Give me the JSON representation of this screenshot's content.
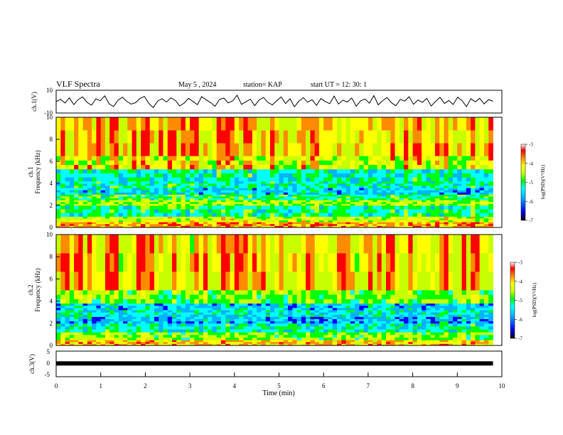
{
  "header": {
    "title": "VLF Spectra",
    "date": "May 5 , 2024",
    "station": "station= KAP",
    "start": "start UT = 12: 30: 1"
  },
  "chart_data": [
    {
      "type": "line",
      "id": "ch1-waveform",
      "ylabel": "ch.1(V)",
      "ylim": [
        -10,
        10
      ],
      "yticks": [
        "10",
        "-10"
      ],
      "xlim": [
        0,
        10
      ],
      "x_extent": [
        0,
        9.8
      ],
      "values": [
        0,
        2.1,
        -1.2,
        3.4,
        -2.6,
        1.8,
        4.2,
        -0.6,
        -3.1,
        2.4,
        0.8,
        5.1,
        -1.9,
        -4.3,
        1.2,
        3.9,
        0.3,
        -2.2,
        -0.9,
        2.8,
        4.6,
        -1.5,
        -5.2,
        0.5,
        2.6,
        -0.4,
        3.3,
        1.1,
        -3.8,
        -1.3,
        2.9,
        0.2,
        -2.7,
        4.4,
        1.6,
        -0.8,
        -4.1,
        1.9,
        3.1,
        -1.1,
        0.6,
        5.6,
        -2.4,
        -0.2,
        2.2,
        -3.5,
        1.4,
        3.7,
        -0.7,
        -2.9,
        0.9,
        4.1,
        -1.7,
        2.5,
        -4.6,
        0.4,
        3.5,
        -0.5,
        1.7,
        -3.3,
        2.7,
        0.1,
        -1.8,
        4.8,
        -2.1,
        1.3,
        -0.3,
        3.2,
        -4.0,
        0.7,
        2.3,
        -1.4,
        5.3,
        -2.8,
        0.9,
        3.6,
        -1.0,
        -3.6,
        2.0,
        0.5,
        4.3,
        -2.3,
        1.5,
        -0.6,
        2.9,
        -3.9,
        0.3,
        3.8,
        -1.6,
        1.0,
        -2.5,
        4.0,
        0.8,
        -4.4,
        2.6,
        -0.1,
        3.0,
        -2.0,
        1.8,
        0.4
      ]
    },
    {
      "type": "heatmap",
      "id": "ch1-spectrogram",
      "ylabel": "ch.1\nFrequency (kHz)",
      "ylim": [
        0,
        10
      ],
      "yticks": [
        "0",
        "2",
        "4",
        "6",
        "8",
        "10"
      ],
      "xlim": [
        0,
        10
      ],
      "x_extent": [
        0,
        9.8
      ],
      "colorbar": {
        "label": "log(PSD)(V²/Hz)",
        "range": [
          -7,
          -3
        ],
        "ticks": [
          "-3",
          "-4",
          "-5",
          "-6",
          "-7"
        ]
      },
      "bands_khz_log_psd": [
        {
          "from": 0.0,
          "to": 0.5,
          "level": -3.8
        },
        {
          "from": 0.5,
          "to": 1.0,
          "level": -4.5
        },
        {
          "from": 1.0,
          "to": 2.0,
          "level": -5.3
        },
        {
          "from": 2.0,
          "to": 2.5,
          "level": -4.7
        },
        {
          "from": 2.5,
          "to": 3.0,
          "level": -5.2
        },
        {
          "from": 3.0,
          "to": 3.6,
          "level": -5.7
        },
        {
          "from": 3.6,
          "to": 4.2,
          "level": -5.4
        },
        {
          "from": 4.2,
          "to": 5.3,
          "level": -5.5
        },
        {
          "from": 5.3,
          "to": 6.5,
          "level": -4.6
        },
        {
          "from": 6.5,
          "to": 10.0,
          "level": -4.2
        }
      ]
    },
    {
      "type": "heatmap",
      "id": "ch2-spectrogram",
      "ylabel": "ch.2\nFrequency (kHz)",
      "ylim": [
        0,
        10
      ],
      "yticks": [
        "0",
        "2",
        "4",
        "6",
        "8",
        "10"
      ],
      "xlim": [
        0,
        10
      ],
      "x_extent": [
        0,
        9.8
      ],
      "colorbar": {
        "label": "log(PSD)(V²/Hz)",
        "range": [
          -7,
          -3
        ],
        "ticks": [
          "-3",
          "-4",
          "-5",
          "-6",
          "-7"
        ]
      },
      "bands_khz_log_psd": [
        {
          "from": 0.0,
          "to": 0.5,
          "level": -4.0
        },
        {
          "from": 0.5,
          "to": 1.2,
          "level": -4.8
        },
        {
          "from": 1.2,
          "to": 2.0,
          "level": -5.5
        },
        {
          "from": 2.0,
          "to": 2.6,
          "level": -5.9
        },
        {
          "from": 2.6,
          "to": 3.2,
          "level": -5.6
        },
        {
          "from": 3.2,
          "to": 3.8,
          "level": -5.8
        },
        {
          "from": 3.8,
          "to": 5.0,
          "level": -4.9
        },
        {
          "from": 5.0,
          "to": 10.0,
          "level": -4.3
        }
      ]
    },
    {
      "type": "line",
      "id": "ch3-waveform",
      "ylabel": "ch.3(V)",
      "ylim": [
        -5,
        5
      ],
      "yticks": [
        "5",
        "0",
        "-5"
      ],
      "xlim": [
        0,
        10
      ],
      "x_extent": [
        0,
        9.8
      ],
      "level": 0.2,
      "xlabel": "Time (min)",
      "xticks": [
        "0",
        "1",
        "2",
        "3",
        "4",
        "5",
        "6",
        "7",
        "8",
        "9",
        "10"
      ]
    }
  ],
  "colors": {
    "spectral_scale": [
      "#000080",
      "#0000ff",
      "#00b4ff",
      "#00ffff",
      "#00ff00",
      "#c8ff00",
      "#ffff00",
      "#ff8c00",
      "#ff0000",
      "#ffffff"
    ]
  }
}
